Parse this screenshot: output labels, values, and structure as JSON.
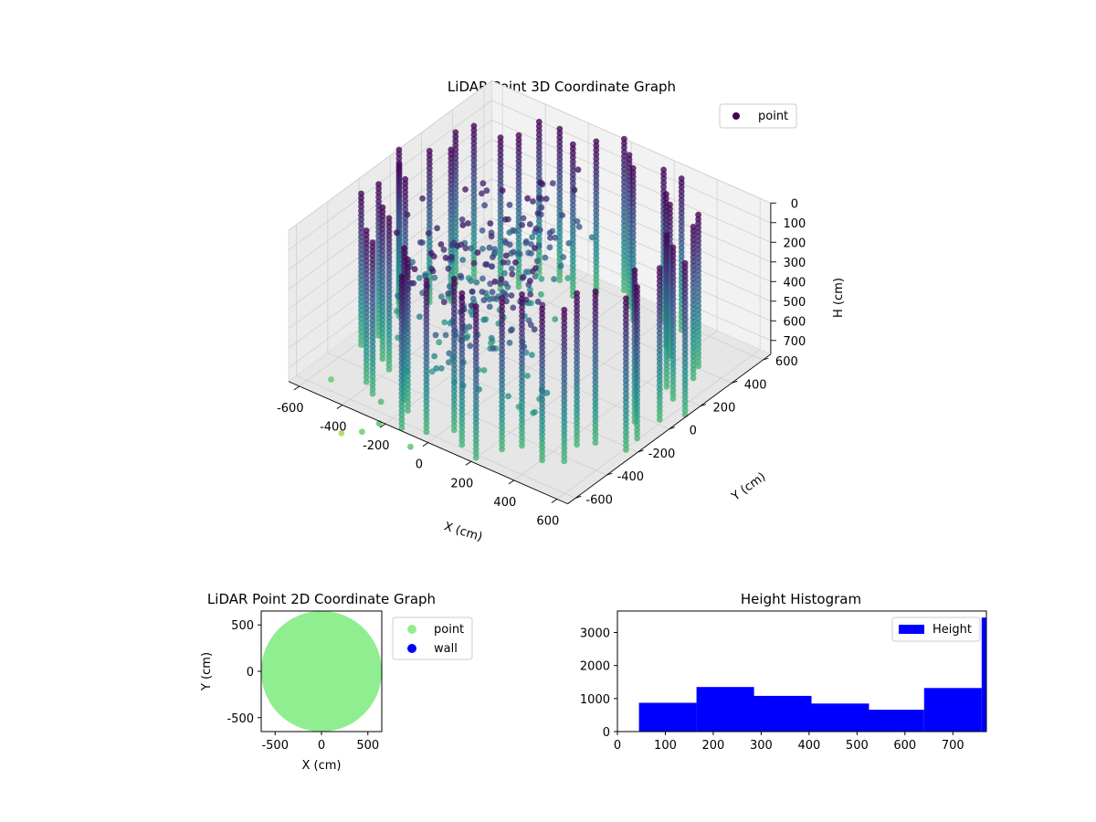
{
  "chart_data": [
    {
      "type": "scatter",
      "subtype": "3d",
      "title": "LiDAR Point 3D Coordinate Graph",
      "xlabel": "X (cm)",
      "ylabel": "Y (cm)",
      "zlabel": "H (cm)",
      "xlim": [
        -650,
        650
      ],
      "ylim": [
        -650,
        650
      ],
      "zlim": [
        0,
        770
      ],
      "z_inverted": true,
      "xticks": [
        "-600",
        "-400",
        "-200",
        "0",
        "200",
        "400",
        "600"
      ],
      "yticks": [
        "-600",
        "-400",
        "-200",
        "0",
        "200",
        "400",
        "600"
      ],
      "zticks": [
        "0",
        "100",
        "200",
        "300",
        "400",
        "500",
        "600",
        "700"
      ],
      "colormap": [
        "#440154",
        "#3b528b",
        "#21918c",
        "#5ec962",
        "#fde725"
      ],
      "legend": {
        "label": "point",
        "position": "upper-right",
        "color": "#440154"
      },
      "grid": true,
      "wall_radius": 650,
      "wall_height": 770,
      "wall_columns": 48,
      "outlier_points": [
        {
          "x": -620,
          "y": -420,
          "h": 880
        },
        {
          "x": -330,
          "y": -620,
          "h": 890
        },
        {
          "x": -300,
          "y": -540,
          "h": 770
        },
        {
          "x": -470,
          "y": -560,
          "h": 1000
        },
        {
          "x": -250,
          "y": -620,
          "h": 810
        },
        {
          "x": -90,
          "y": -640,
          "h": 840
        }
      ]
    },
    {
      "type": "scatter",
      "title": "LiDAR Point 2D Coordinate Graph",
      "xlabel": "X (cm)",
      "ylabel": "Y (cm)",
      "xlim": [
        -650,
        650
      ],
      "ylim": [
        -650,
        650
      ],
      "xticks": [
        "-500",
        "0",
        "500"
      ],
      "yticks": [
        "-500",
        "0",
        "500"
      ],
      "series": [
        {
          "name": "point",
          "color": "#90ee90",
          "shape": "filled disc",
          "radius": 650
        },
        {
          "name": "wall",
          "color": "#0000ff",
          "points": []
        }
      ],
      "legend_position": "outside-right"
    },
    {
      "type": "bar",
      "subtype": "histogram",
      "title": "Height Histogram",
      "xlim": [
        0,
        770
      ],
      "ylim": [
        0,
        3650
      ],
      "xticks": [
        "0",
        "100",
        "200",
        "300",
        "400",
        "500",
        "600",
        "700"
      ],
      "yticks": [
        "0",
        "1000",
        "2000",
        "3000"
      ],
      "bins": [
        {
          "start": 45,
          "end": 165,
          "count": 870
        },
        {
          "start": 165,
          "end": 285,
          "count": 1350
        },
        {
          "start": 285,
          "end": 405,
          "count": 1080
        },
        {
          "start": 405,
          "end": 525,
          "count": 850
        },
        {
          "start": 525,
          "end": 640,
          "count": 660
        },
        {
          "start": 640,
          "end": 760,
          "count": 1320
        },
        {
          "start": 760,
          "end": 770,
          "count": 3450
        }
      ],
      "series": [
        {
          "name": "Height",
          "color": "#0000ff"
        }
      ],
      "legend_position": "upper-right"
    }
  ]
}
